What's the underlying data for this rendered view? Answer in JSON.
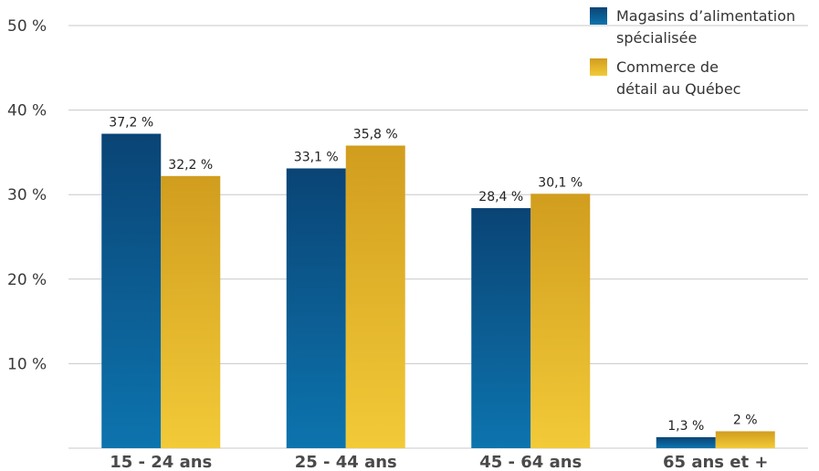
{
  "chart_data": {
    "type": "bar",
    "categories": [
      "15 - 24 ans",
      "25 - 44 ans",
      "45 - 64 ans",
      "65 ans et +"
    ],
    "series": [
      {
        "name": "Magasins d’alimentation spécialisée",
        "legend_lines": [
          "Magasins d’alimentation",
          "spécialisée"
        ],
        "values": [
          37.2,
          33.1,
          28.4,
          1.3
        ],
        "labels": [
          "37,2 %",
          "33,1 %",
          "28,4 %",
          "1,3 %"
        ],
        "color_top": "#0a4475",
        "color_bottom": "#0d74ae"
      },
      {
        "name": "Commerce de détail au Québec",
        "legend_lines": [
          "Commerce de",
          "détail au Québec"
        ],
        "values": [
          32.2,
          35.8,
          30.1,
          2
        ],
        "labels": [
          "32,2 %",
          "35,8 %",
          "30,1 %",
          "2 %"
        ],
        "color_top": "#d19d1e",
        "color_bottom": "#f2ca38"
      }
    ],
    "ylim": [
      0,
      50
    ],
    "yticks": [
      10,
      20,
      30,
      40,
      50
    ],
    "ytick_labels": [
      "10 %",
      "20 %",
      "30 %",
      "40 %",
      "50 %"
    ],
    "grid": true,
    "legend": "top-right",
    "title": "",
    "xlabel": "",
    "ylabel": ""
  }
}
